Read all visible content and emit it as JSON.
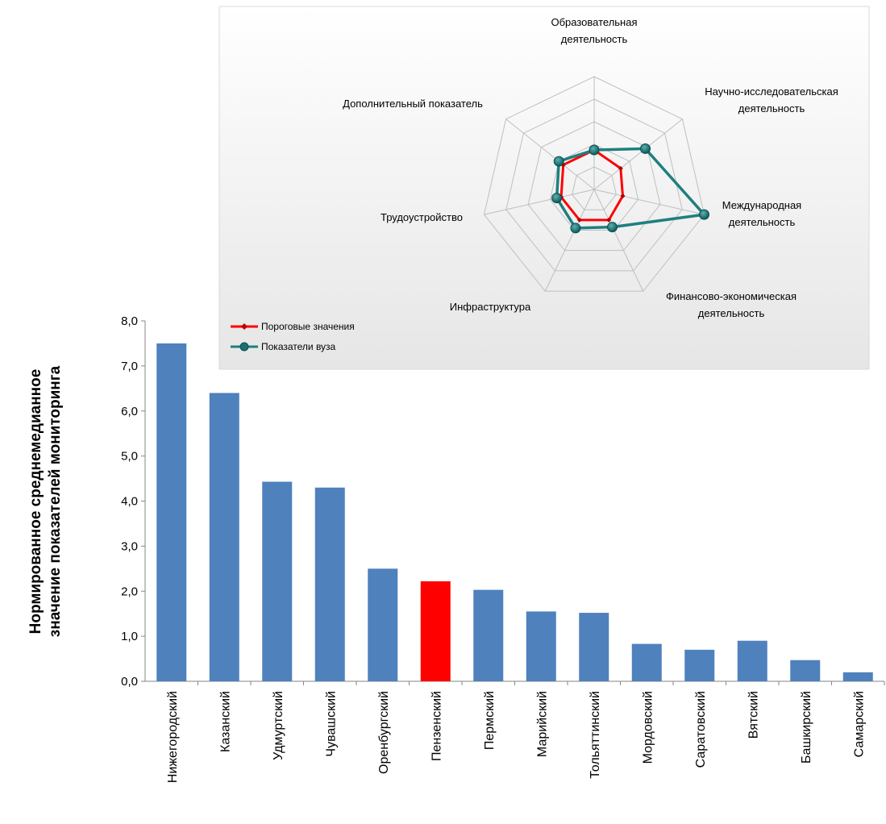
{
  "chart_data": [
    {
      "type": "bar",
      "ylabel": "Нормированное среднемедианное значение показателей мониторинга",
      "ylim": [
        0,
        8
      ],
      "yticks": [
        "0,0",
        "1,0",
        "2,0",
        "3,0",
        "4,0",
        "5,0",
        "6,0",
        "7,0",
        "8,0"
      ],
      "categories": [
        "Нижегородский",
        "Казанский",
        "Удмуртский",
        "Чувашский",
        "Оренбургский",
        "Пензенский",
        "Пермский",
        "Марийский",
        "Тольяттинский",
        "Мордовский",
        "Саратовский",
        "Вятский",
        "Башкирский",
        "Самарский"
      ],
      "values": [
        7.5,
        6.4,
        4.43,
        4.3,
        2.5,
        2.22,
        2.03,
        1.55,
        1.52,
        0.83,
        0.7,
        0.9,
        0.47,
        0.2
      ],
      "highlight_index": 5,
      "colors": {
        "bar": "#4F81BD",
        "highlight": "#FF0000"
      },
      "grid": false
    },
    {
      "type": "radar",
      "axes": [
        "Образовательная деятельность",
        "Научно-исследовательская деятельность",
        "Международная деятельность",
        "Финансово-экономическая деятельность",
        "Инфраструктура",
        "Трудоустройство",
        "Дополнительный показатель"
      ],
      "axis_labels": {
        "a0": [
          "Образовательная",
          "деятельность"
        ],
        "a1": [
          "Научно-исследовательская",
          "деятельность"
        ],
        "a2": [
          "Международная",
          "деятельность"
        ],
        "a3": [
          "Финансово-экономическая",
          "деятельность"
        ],
        "a4": [
          "Инфраструктура"
        ],
        "a5": [
          "Трудоустройство"
        ],
        "a6": [
          "Дополнительный  показатель"
        ]
      },
      "max": 5,
      "series": [
        {
          "name": "Пороговые значения",
          "values": [
            1.75,
            1.5,
            1.3,
            1.5,
            1.5,
            1.5,
            1.75
          ],
          "color": "#FF0000"
        },
        {
          "name": "Показатели вуза",
          "values": [
            1.75,
            2.9,
            5.0,
            1.85,
            1.9,
            1.7,
            2.0
          ],
          "color": "#1F7F7F"
        }
      ],
      "legend_position": "bottom-left"
    }
  ]
}
